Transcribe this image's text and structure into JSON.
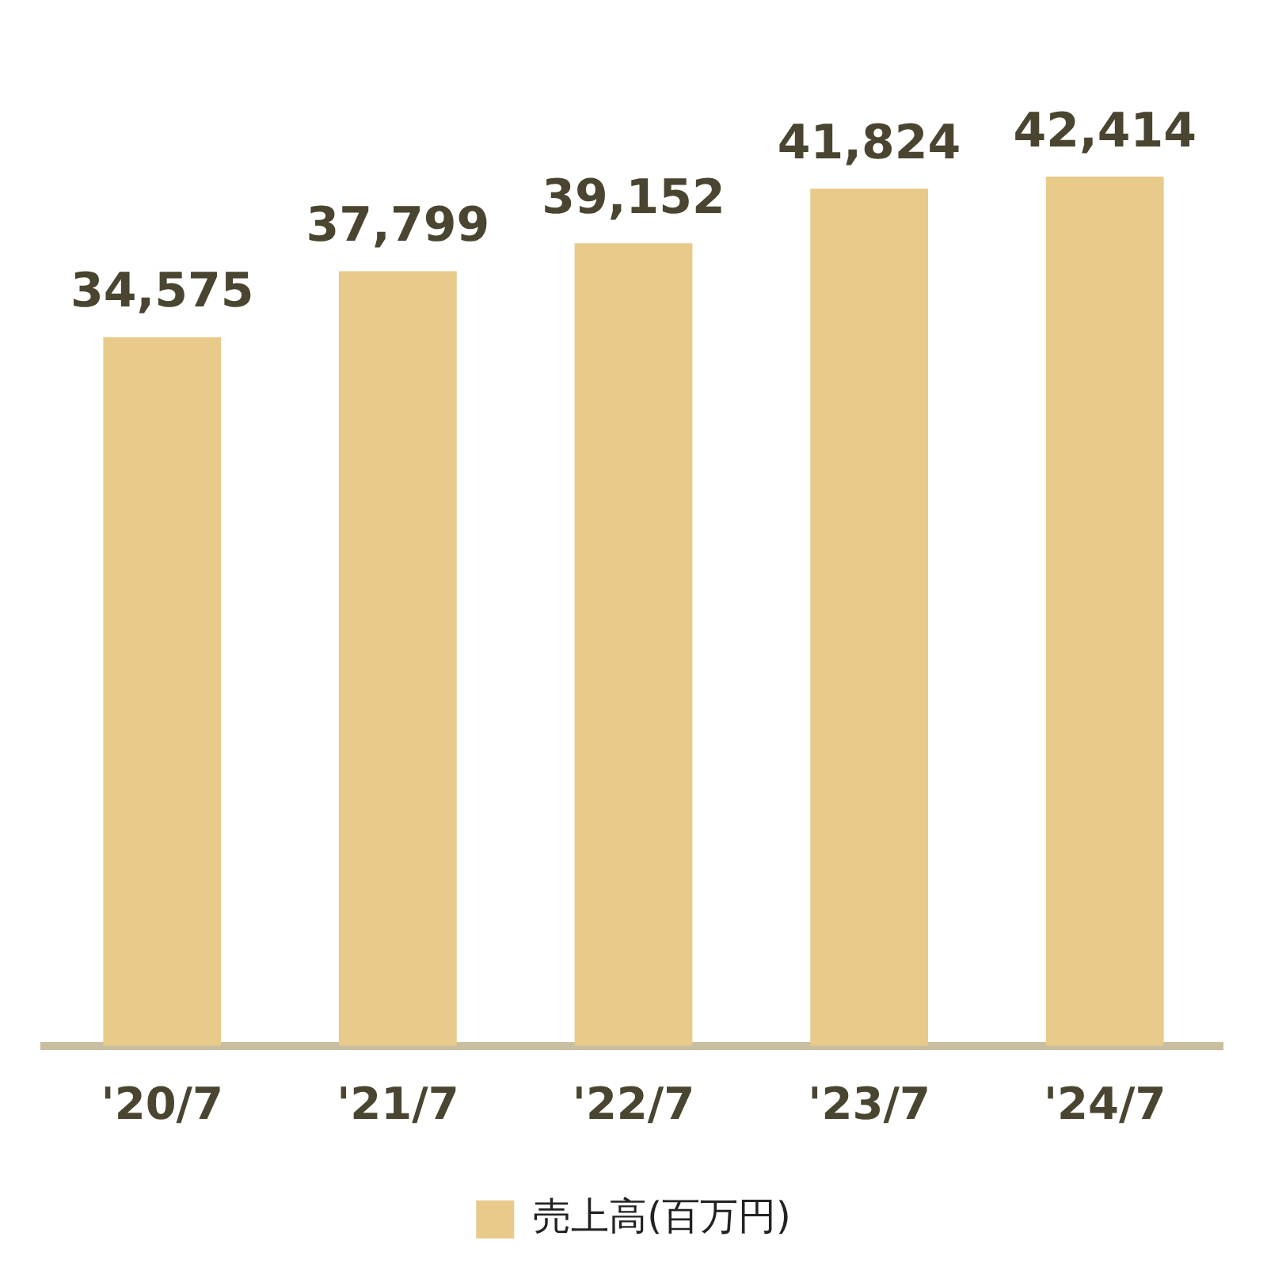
{
  "chart_data": {
    "type": "bar",
    "categories": [
      "'20/7",
      "'21/7",
      "'22/7",
      "'23/7",
      "'24/7"
    ],
    "series": [
      {
        "name": "売上高(百万円)",
        "color": "#e8ca8a",
        "values": [
          34575,
          37799,
          39152,
          41824,
          42414
        ],
        "value_labels": [
          "34,575",
          "37,799",
          "39,152",
          "41,824",
          "42,414"
        ]
      }
    ],
    "legend": "bottom",
    "grid": false,
    "tick_labels": "x"
  }
}
